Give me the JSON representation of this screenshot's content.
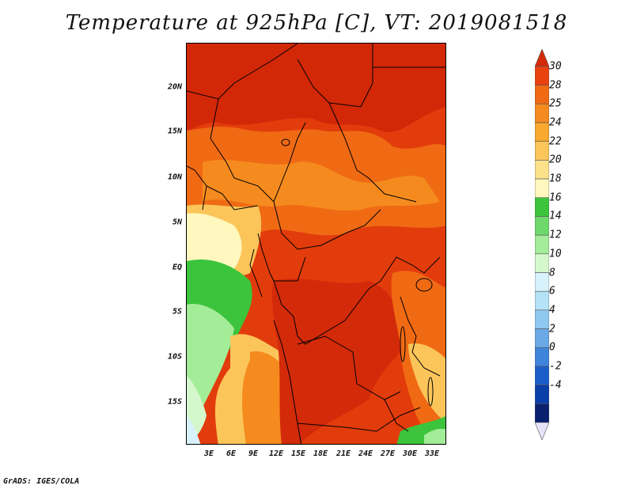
{
  "title": "Temperature at 925hPa [C], VT: 2019081518",
  "footer": "GrADS: IGES/COLA",
  "map": {
    "lat_labels": [
      "20N",
      "15N",
      "10N",
      "5N",
      "EQ",
      "5S",
      "10S",
      "15S"
    ],
    "lon_labels": [
      "3E",
      "6E",
      "9E",
      "12E",
      "15E",
      "18E",
      "21E",
      "24E",
      "27E",
      "30E",
      "33E"
    ]
  },
  "colorbar": {
    "labels": [
      "30",
      "28",
      "25",
      "24",
      "22",
      "20",
      "18",
      "16",
      "14",
      "12",
      "10",
      "8",
      "6",
      "4",
      "2",
      "0",
      "-2",
      "-4"
    ],
    "colors": [
      "#d32a0a",
      "#e9420f",
      "#f06a14",
      "#f58b1e",
      "#f9a92f",
      "#fbc55a",
      "#fbe18a",
      "#fff7bd",
      "#3cc43c",
      "#6ed86c",
      "#a3ec98",
      "#d5f7cc",
      "#d7f2fb",
      "#b4e3f8",
      "#8fc8f0",
      "#6aa8e6",
      "#3f84db",
      "#1c5ec9",
      "#0b3fa8",
      "#08206e",
      "#e6e4f8"
    ]
  }
}
